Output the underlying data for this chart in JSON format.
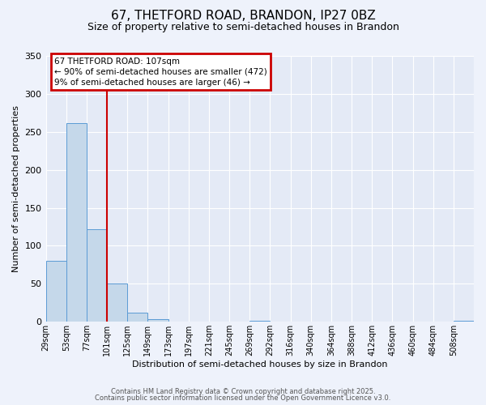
{
  "title1": "67, THETFORD ROAD, BRANDON, IP27 0BZ",
  "title2": "Size of property relative to semi-detached houses in Brandon",
  "xlabel": "Distribution of semi-detached houses by size in Brandon",
  "ylabel": "Number of semi-detached properties",
  "bin_labels": [
    "29sqm",
    "53sqm",
    "77sqm",
    "101sqm",
    "125sqm",
    "149sqm",
    "173sqm",
    "197sqm",
    "221sqm",
    "245sqm",
    "269sqm",
    "292sqm",
    "316sqm",
    "340sqm",
    "364sqm",
    "388sqm",
    "412sqm",
    "436sqm",
    "460sqm",
    "484sqm",
    "508sqm"
  ],
  "bar_values": [
    80,
    262,
    122,
    50,
    12,
    4,
    0,
    0,
    0,
    0,
    1,
    0,
    0,
    0,
    0,
    0,
    0,
    0,
    0,
    0,
    1
  ],
  "bar_color": "#c5d8ea",
  "bar_edge_color": "#5b9bd5",
  "ylim": [
    0,
    350
  ],
  "yticks": [
    0,
    50,
    100,
    150,
    200,
    250,
    300,
    350
  ],
  "property_line_x": 3,
  "property_line_color": "#cc0000",
  "annotation_title": "67 THETFORD ROAD: 107sqm",
  "annotation_line1": "← 90% of semi-detached houses are smaller (472)",
  "annotation_line2": "9% of semi-detached houses are larger (46) →",
  "annotation_box_color": "#cc0000",
  "footer1": "Contains HM Land Registry data © Crown copyright and database right 2025.",
  "footer2": "Contains public sector information licensed under the Open Government Licence v3.0.",
  "background_color": "#eef2fb",
  "plot_bg_color": "#e4eaf6",
  "grid_color": "#ffffff",
  "title1_fontsize": 11,
  "title2_fontsize": 9
}
